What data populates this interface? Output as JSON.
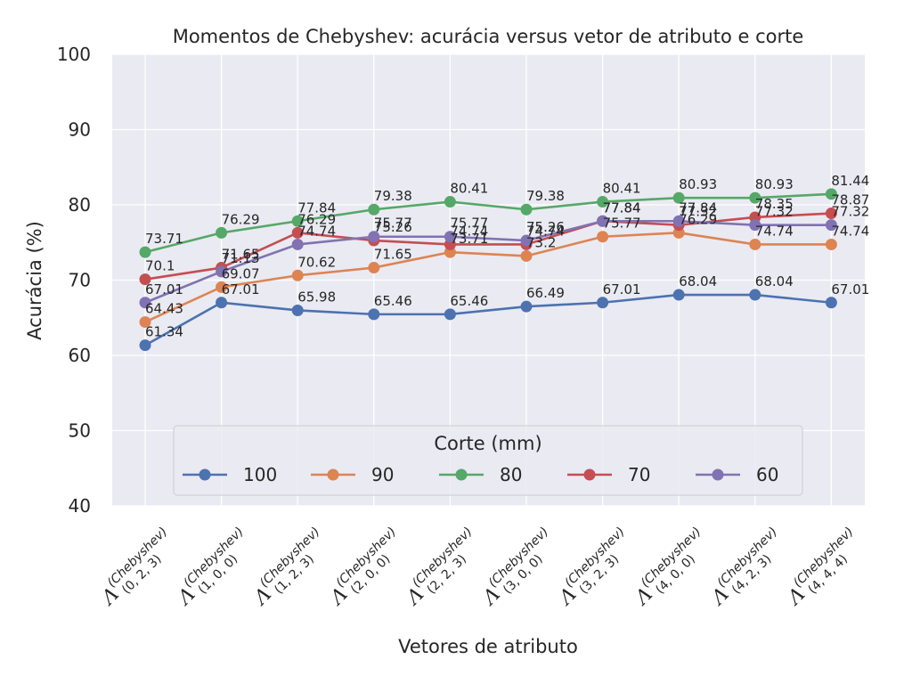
{
  "chart_data": {
    "type": "line",
    "title": "Momentos de Chebyshev: acurácia versus vetor de atributo e corte",
    "xlabel": "Vetores de atributo",
    "ylabel": "Acurácia (%)",
    "ylim": [
      40,
      100
    ],
    "yticks": [
      "40",
      "50",
      "60",
      "70",
      "80",
      "90",
      "100"
    ],
    "grid": true,
    "categories": [
      {
        "symbol": "Λ",
        "sup": "(Chebyshev)",
        "sub": "(0, 2, 3)"
      },
      {
        "symbol": "Λ",
        "sup": "(Chebyshev)",
        "sub": "(1, 0, 0)"
      },
      {
        "symbol": "Λ",
        "sup": "(Chebyshev)",
        "sub": "(1, 2, 3)"
      },
      {
        "symbol": "Λ",
        "sup": "(Chebyshev)",
        "sub": "(2, 0, 0)"
      },
      {
        "symbol": "Λ",
        "sup": "(Chebyshev)",
        "sub": "(2, 2, 3)"
      },
      {
        "symbol": "Λ",
        "sup": "(Chebyshev)",
        "sub": "(3, 0, 0)"
      },
      {
        "symbol": "Λ",
        "sup": "(Chebyshev)",
        "sub": "(3, 2, 3)"
      },
      {
        "symbol": "Λ",
        "sup": "(Chebyshev)",
        "sub": "(4, 0, 0)"
      },
      {
        "symbol": "Λ",
        "sup": "(Chebyshev)",
        "sub": "(4, 2, 3)"
      },
      {
        "symbol": "Λ",
        "sup": "(Chebyshev)",
        "sub": "(4, 4, 4)"
      }
    ],
    "series": [
      {
        "name": "100",
        "color": "#4c72b0",
        "values": [
          61.34,
          67.01,
          65.98,
          65.46,
          65.46,
          66.49,
          67.01,
          68.04,
          68.04,
          67.01
        ]
      },
      {
        "name": "90",
        "color": "#dd8452",
        "values": [
          64.43,
          69.07,
          70.62,
          71.65,
          73.71,
          73.2,
          75.77,
          76.29,
          74.74,
          74.74
        ]
      },
      {
        "name": "80",
        "color": "#55a868",
        "values": [
          73.71,
          76.29,
          77.84,
          79.38,
          80.41,
          79.38,
          80.41,
          80.93,
          80.93,
          81.44
        ]
      },
      {
        "name": "70",
        "color": "#c44e52",
        "values": [
          70.1,
          71.65,
          76.29,
          75.26,
          74.74,
          74.74,
          77.84,
          77.32,
          78.35,
          78.87
        ]
      },
      {
        "name": "60",
        "color": "#8172b3",
        "values": [
          67.01,
          71.13,
          74.74,
          75.77,
          75.77,
          75.26,
          77.84,
          77.84,
          77.32,
          77.32
        ]
      }
    ],
    "legend": {
      "title": "Corte (mm)",
      "placement": "lower-center",
      "columns": 5
    },
    "style": {
      "background": "#eaeaf2",
      "grid_color": "#ffffff",
      "text_color": "#262626"
    }
  }
}
